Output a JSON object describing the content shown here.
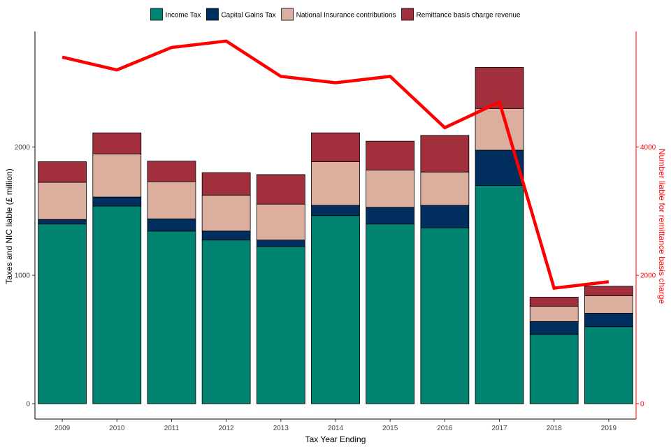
{
  "chart_data": {
    "type": "bar",
    "stacked": true,
    "title": "",
    "xlabel": "Tax Year Ending",
    "ylabel": "Taxes and NIC liable (£ million)",
    "y2label": "Number liable for remittance basis charge",
    "categories": [
      "2009",
      "2010",
      "2011",
      "2012",
      "2013",
      "2014",
      "2015",
      "2016",
      "2017",
      "2018",
      "2019"
    ],
    "ylim": [
      0,
      2900
    ],
    "yticks": [
      0,
      1000,
      2000
    ],
    "y2lim": [
      0,
      5800
    ],
    "y2ticks": [
      0,
      2000,
      4000
    ],
    "legend_position": "top",
    "series": [
      {
        "name": "Income Tax",
        "color": "#008471",
        "values": [
          1400,
          1540,
          1345,
          1275,
          1225,
          1465,
          1400,
          1370,
          1700,
          540,
          600
        ]
      },
      {
        "name": "Capital Gains Tax",
        "color": "#002f5f",
        "values": [
          35,
          70,
          95,
          70,
          50,
          80,
          130,
          175,
          275,
          100,
          105
        ]
      },
      {
        "name": "National Insurance contributions",
        "color": "#dbae9e",
        "values": [
          290,
          335,
          290,
          280,
          280,
          340,
          290,
          260,
          325,
          120,
          135
        ]
      },
      {
        "name": "Remittance basis charge revenue",
        "color": "#a1303c",
        "values": [
          160,
          165,
          160,
          175,
          230,
          225,
          225,
          285,
          320,
          70,
          75
        ]
      }
    ],
    "line_series": {
      "name": "Number liable for remittance basis charge",
      "color": "#ff0000",
      "axis": "right",
      "values": [
        5400,
        5200,
        5550,
        5650,
        5100,
        5000,
        5100,
        4300,
        4700,
        1800,
        1900
      ]
    }
  }
}
